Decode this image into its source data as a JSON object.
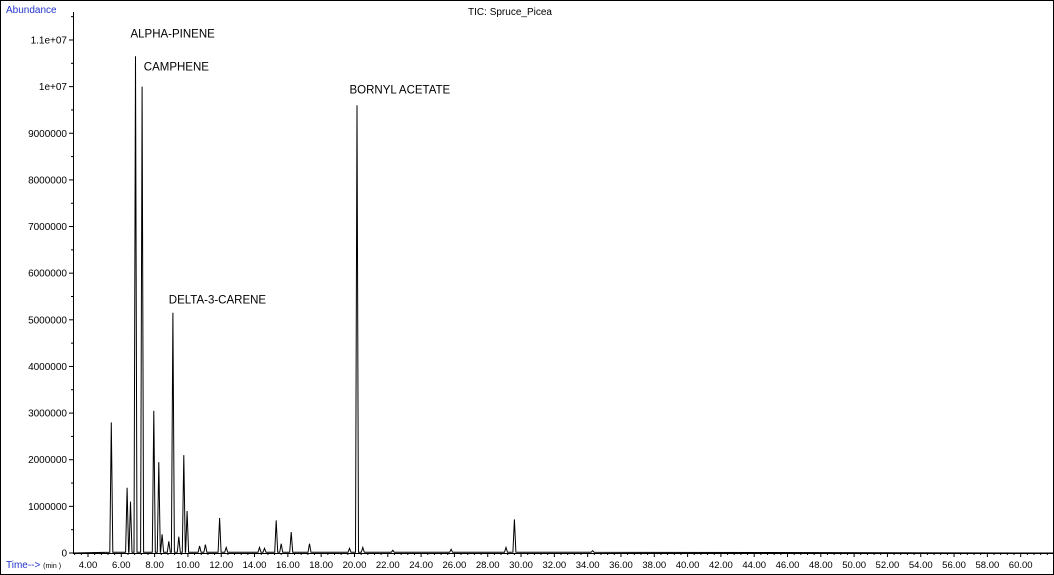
{
  "chart_data": {
    "type": "line",
    "title": "TIC: Spruce_Picea",
    "ylabel": "Abundance",
    "xlabel": "Time-->",
    "xunit": "(min )",
    "xlim": [
      3.1,
      62.0
    ],
    "ylim": [
      0,
      11600000
    ],
    "y_ticks": [
      "0",
      "1000000",
      "2000000",
      "3000000",
      "4000000",
      "5000000",
      "6000000",
      "7000000",
      "8000000",
      "9000000",
      "1e+07",
      "1.1e+07"
    ],
    "y_tick_values": [
      0,
      1000000,
      2000000,
      3000000,
      4000000,
      5000000,
      6000000,
      7000000,
      8000000,
      9000000,
      10000000,
      11000000
    ],
    "x_ticks": [
      "4.00",
      "6.00",
      "8.00",
      "10.00",
      "12.00",
      "14.00",
      "16.00",
      "18.00",
      "20.00",
      "22.00",
      "24.00",
      "26.00",
      "28.00",
      "30.00",
      "32.00",
      "34.00",
      "36.00",
      "38.00",
      "40.00",
      "42.00",
      "44.00",
      "46.00",
      "48.00",
      "50.00",
      "52.00",
      "54.00",
      "56.00",
      "58.00",
      "60.00"
    ],
    "x_tick_values": [
      4,
      6,
      8,
      10,
      12,
      14,
      16,
      18,
      20,
      22,
      24,
      26,
      28,
      30,
      32,
      34,
      36,
      38,
      40,
      42,
      44,
      46,
      48,
      50,
      52,
      54,
      56,
      58,
      60
    ],
    "peaks": [
      {
        "x": 5.4,
        "y": 2800000
      },
      {
        "x": 6.35,
        "y": 1400000
      },
      {
        "x": 6.55,
        "y": 1100000
      },
      {
        "x": 6.85,
        "y": 10650000
      },
      {
        "x": 7.25,
        "y": 10000000
      },
      {
        "x": 7.95,
        "y": 3050000
      },
      {
        "x": 8.25,
        "y": 1950000
      },
      {
        "x": 8.45,
        "y": 400000
      },
      {
        "x": 8.85,
        "y": 250000
      },
      {
        "x": 9.1,
        "y": 5150000
      },
      {
        "x": 9.45,
        "y": 350000
      },
      {
        "x": 9.75,
        "y": 2100000
      },
      {
        "x": 9.95,
        "y": 900000
      },
      {
        "x": 10.7,
        "y": 150000
      },
      {
        "x": 11.05,
        "y": 180000
      },
      {
        "x": 11.9,
        "y": 750000
      },
      {
        "x": 12.3,
        "y": 120000
      },
      {
        "x": 14.3,
        "y": 120000
      },
      {
        "x": 14.6,
        "y": 100000
      },
      {
        "x": 15.3,
        "y": 700000
      },
      {
        "x": 15.6,
        "y": 200000
      },
      {
        "x": 16.2,
        "y": 450000
      },
      {
        "x": 17.3,
        "y": 200000
      },
      {
        "x": 19.7,
        "y": 100000
      },
      {
        "x": 20.15,
        "y": 9600000
      },
      {
        "x": 20.5,
        "y": 120000
      },
      {
        "x": 22.3,
        "y": 60000
      },
      {
        "x": 25.8,
        "y": 80000
      },
      {
        "x": 29.1,
        "y": 120000
      },
      {
        "x": 29.6,
        "y": 720000
      },
      {
        "x": 34.3,
        "y": 50000
      }
    ],
    "annotations": [
      {
        "text": "ALPHA-PINENE",
        "x": 6.55,
        "y": 11050000
      },
      {
        "text": "CAMPHENE",
        "x": 7.35,
        "y": 10350000
      },
      {
        "text": "BORNYL ACETATE",
        "x": 19.7,
        "y": 9850000
      },
      {
        "text": "DELTA-3-CARENE",
        "x": 8.85,
        "y": 5350000
      }
    ],
    "grid": false,
    "colors": {
      "line": "#000000",
      "axis_label": "#2233cc"
    }
  }
}
